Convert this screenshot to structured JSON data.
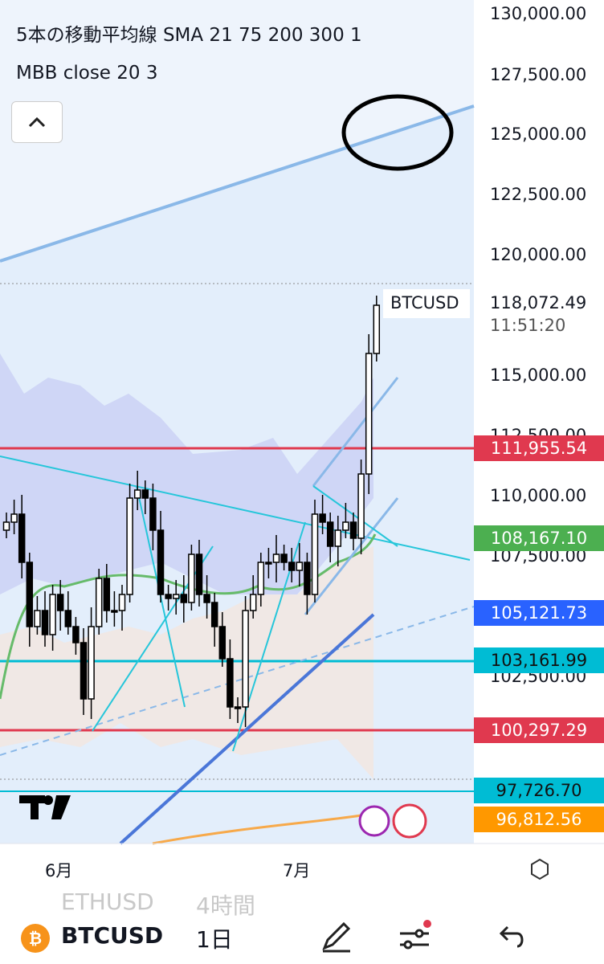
{
  "indicators": [
    "5本の移動平均線 SMA 21 75 200 300 1",
    "MBB close 20 3"
  ],
  "price_axis": [
    "130,000.00",
    "127,500.00",
    "125,000.00",
    "122,500.00",
    "120,000.00",
    "115,000.00",
    "112,500.00",
    "110,000.00",
    "107,500.00",
    "102,500.00"
  ],
  "last_price": {
    "symbol": "BTCUSD",
    "price": "118,072.49",
    "countdown": "11:51:20"
  },
  "price_tags": [
    {
      "label": "111,955.54",
      "color": "#e0394f"
    },
    {
      "label": "108,167.10",
      "color": "#4caf50"
    },
    {
      "label": "105,121.73",
      "color": "#2962ff"
    },
    {
      "label": "103,161.99",
      "color": "#00bcd4"
    },
    {
      "label": "100,297.29",
      "color": "#e0394f"
    },
    {
      "label": "97,726.70",
      "color": "#00bcd4"
    },
    {
      "label": "96,812.56",
      "color": "#ff9800"
    }
  ],
  "time_axis": [
    "6月",
    "7月"
  ],
  "bottom_bar": {
    "ghost_symbol": "ETHUSD",
    "ghost_interval": "4時間",
    "symbol": "BTCUSD",
    "interval": "1日"
  }
}
